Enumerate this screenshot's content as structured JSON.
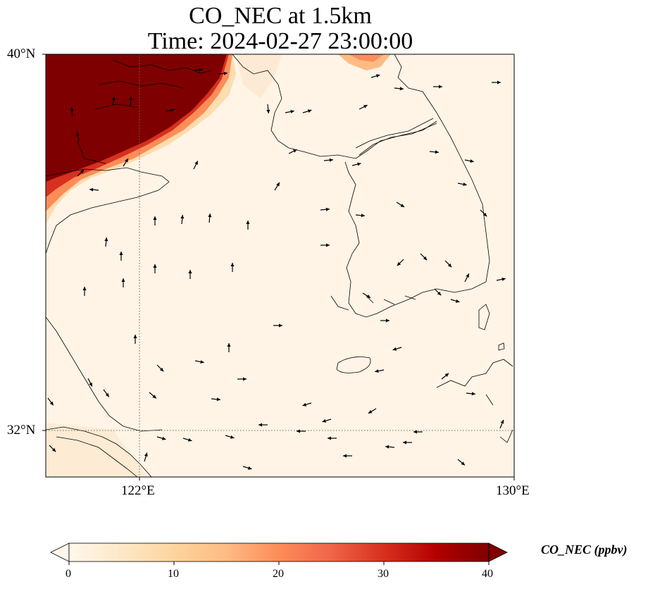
{
  "title": {
    "line1": "CO_NEC at 1.5km",
    "line2": "Time: 2024-02-27 23:00:00"
  },
  "map": {
    "variable": "CO_NEC",
    "height": "1.5km",
    "time": "2024-02-27 23:00:00",
    "lon_range": [
      121,
      130
    ],
    "lat_range": [
      31.2,
      40
    ],
    "lat_ticks": [
      {
        "value": 40,
        "label": "40°N"
      },
      {
        "value": 32,
        "label": "32°N"
      }
    ],
    "lon_ticks": [
      {
        "value": 122,
        "label": "122°E"
      },
      {
        "value": 130,
        "label": "130°E"
      }
    ],
    "gridlines": "dotted gray at 122°E and 32°N",
    "field_description": "high CO (>40 ppbv, dark red) over the northwest corner (Liaoning/Bohai), near-zero pale values over the Yellow Sea and Korea",
    "wind_vectors": "black arrows showing wind direction"
  },
  "colorbar": {
    "label": "CO_NEC (ppbv)",
    "min": 0,
    "max": 40,
    "ticks": [
      "0",
      "10",
      "20",
      "30",
      "40"
    ],
    "colormap": [
      "#fff7ec",
      "#fee8c8",
      "#fdd49e",
      "#fdbb84",
      "#fc8d59",
      "#ef6548",
      "#d7301f",
      "#b30000",
      "#7f0000"
    ],
    "extend": "both"
  }
}
